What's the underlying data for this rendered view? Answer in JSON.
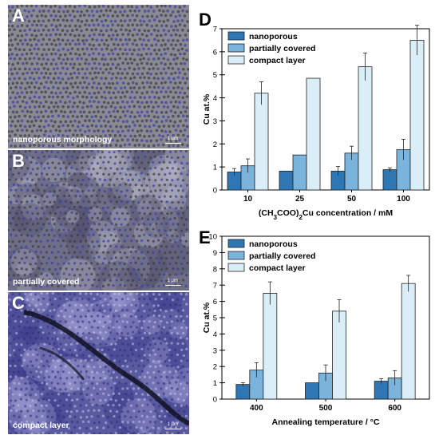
{
  "images": [
    {
      "letter": "A",
      "caption": "nanoporous morphology",
      "scale": "1 μm",
      "style": "nanoporous"
    },
    {
      "letter": "B",
      "caption": "partially covered",
      "scale": "1 μm",
      "style": "partial"
    },
    {
      "letter": "C",
      "caption": "compact layer",
      "scale": "1 μm",
      "style": "compact"
    }
  ],
  "colors": {
    "nanoporous": "#2f77b4",
    "partially_covered": "#7ab3db",
    "compact_layer": "#daeef8"
  },
  "chart_data": [
    {
      "panel": "D",
      "type": "bar",
      "categories": [
        "10",
        "25",
        "50",
        "100"
      ],
      "xlabel": "(CH3COO)2Cu concentration / mM",
      "ylabel": "Cu at.%",
      "ylim": [
        0,
        7
      ],
      "yticks": [
        0,
        1,
        2,
        3,
        4,
        5,
        6,
        7
      ],
      "legend": "top-left",
      "series": [
        {
          "name": "nanoporous",
          "values": [
            0.78,
            0.82,
            0.82,
            0.88
          ],
          "errors": [
            0.15,
            0,
            0.2,
            0.08
          ]
        },
        {
          "name": "partially covered",
          "values": [
            1.05,
            1.52,
            1.6,
            1.75
          ],
          "errors": [
            0.3,
            0,
            0.3,
            0.45
          ]
        },
        {
          "name": "compact layer",
          "values": [
            4.2,
            4.85,
            5.35,
            6.5
          ],
          "errors": [
            0.5,
            0,
            0.6,
            0.65
          ]
        }
      ]
    },
    {
      "panel": "E",
      "type": "bar",
      "categories": [
        "400",
        "500",
        "600"
      ],
      "xlabel": "Annealing temperature / °C",
      "ylabel": "Cu at.%",
      "ylim": [
        0,
        10
      ],
      "yticks": [
        0,
        1,
        2,
        3,
        4,
        5,
        6,
        7,
        8,
        9,
        10
      ],
      "legend": "top-left",
      "series": [
        {
          "name": "nanoporous",
          "values": [
            0.9,
            1.0,
            1.1
          ],
          "errors": [
            0.1,
            0,
            0.15
          ]
        },
        {
          "name": "partially covered",
          "values": [
            1.78,
            1.6,
            1.3
          ],
          "errors": [
            0.45,
            0.5,
            0.45
          ]
        },
        {
          "name": "compact layer",
          "values": [
            6.5,
            5.4,
            7.1
          ],
          "errors": [
            0.7,
            0.7,
            0.5
          ]
        }
      ]
    }
  ]
}
